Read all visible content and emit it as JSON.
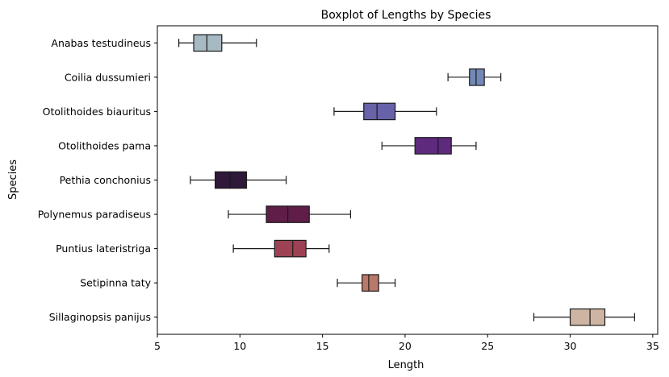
{
  "chart_data": {
    "type": "boxplot",
    "orientation": "horizontal",
    "title": "Boxplot of Lengths by Species",
    "xlabel": "Length",
    "ylabel": "Species",
    "xlim": [
      5,
      35.3
    ],
    "xticks": [
      5,
      10,
      15,
      20,
      25,
      30,
      35
    ],
    "grid": false,
    "legend": "none",
    "categories": [
      "Anabas testudineus",
      "Coilia dussumieri",
      "Otolithoides biauritus",
      "Otolithoides pama",
      "Pethia conchonius",
      "Polynemus paradiseus",
      "Puntius lateristriga",
      "Setipinna taty",
      "Sillaginopsis panijus"
    ],
    "boxes": [
      {
        "whisker_low": 6.3,
        "q1": 7.2,
        "median": 8.0,
        "q3": 8.9,
        "whisker_high": 11.0,
        "color": "#a7b9c3"
      },
      {
        "whisker_low": 22.6,
        "q1": 23.9,
        "median": 24.3,
        "q3": 24.8,
        "whisker_high": 25.8,
        "color": "#7289b8"
      },
      {
        "whisker_low": 15.7,
        "q1": 17.5,
        "median": 18.3,
        "q3": 19.4,
        "whisker_high": 21.9,
        "color": "#6862a9"
      },
      {
        "whisker_low": 18.6,
        "q1": 20.6,
        "median": 22.0,
        "q3": 22.8,
        "whisker_high": 24.3,
        "color": "#5d2a7d"
      },
      {
        "whisker_low": 7.0,
        "q1": 8.5,
        "median": 9.4,
        "q3": 10.4,
        "whisker_high": 12.8,
        "color": "#2f1839"
      },
      {
        "whisker_low": 9.3,
        "q1": 11.6,
        "median": 12.9,
        "q3": 14.2,
        "whisker_high": 16.7,
        "color": "#5f1d48"
      },
      {
        "whisker_low": 9.6,
        "q1": 12.1,
        "median": 13.2,
        "q3": 14.0,
        "whisker_high": 15.4,
        "color": "#9d4254"
      },
      {
        "whisker_low": 15.9,
        "q1": 17.4,
        "median": 17.8,
        "q3": 18.4,
        "whisker_high": 19.4,
        "color": "#b9796a"
      },
      {
        "whisker_low": 27.8,
        "q1": 30.0,
        "median": 31.2,
        "q3": 32.1,
        "whisker_high": 33.9,
        "color": "#ceb4a2"
      }
    ]
  }
}
